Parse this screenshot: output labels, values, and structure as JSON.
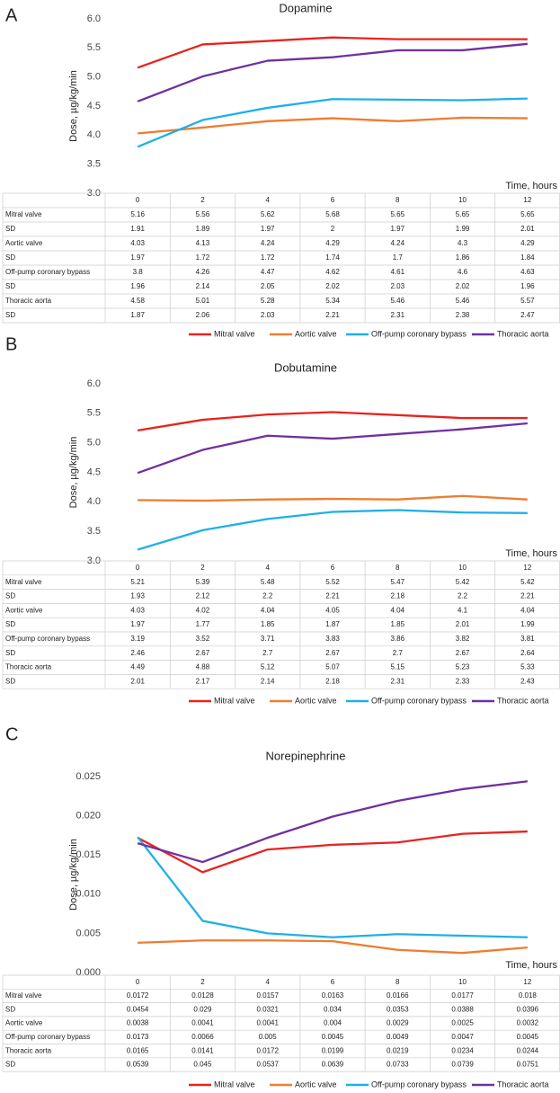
{
  "chart_data": [
    {
      "type": "line",
      "panel_label": "A",
      "title": "Dopamine",
      "y_label": "Dose, µg/kg/min",
      "x_label": "Time, hours",
      "sd_label": "SD",
      "x": [
        0,
        2,
        4,
        6,
        8,
        10,
        12
      ],
      "xlim": [
        -1,
        13
      ],
      "ylim": [
        3,
        6
      ],
      "yticks": [
        {
          "value": 3,
          "label": "3.0"
        },
        3.5,
        {
          "value": 4,
          "label": "4.0"
        },
        4.5,
        {
          "value": 5,
          "label": "5.0"
        },
        5.5,
        {
          "value": 6,
          "label": "6.0"
        }
      ],
      "series": [
        {
          "name": "Mitral valve",
          "color": "#e8231e",
          "values": [
            5.16,
            5.56,
            5.62,
            5.68,
            5.65,
            5.65,
            5.65
          ],
          "sd": [
            1.91,
            1.89,
            1.97,
            2,
            1.97,
            1.99,
            2.01
          ]
        },
        {
          "name": "Aortic valve",
          "color": "#ed7d31",
          "values": [
            4.03,
            4.13,
            4.24,
            4.29,
            4.24,
            4.3,
            4.29
          ],
          "sd": [
            1.97,
            1.72,
            1.72,
            1.74,
            1.7,
            1.86,
            1.84
          ]
        },
        {
          "name": "Off-pump coronary bypass",
          "color": "#1fb0e6",
          "values": [
            3.8,
            4.26,
            4.47,
            4.62,
            4.61,
            4.6,
            4.63
          ],
          "sd": [
            1.96,
            2.14,
            2.05,
            2.02,
            2.03,
            2.02,
            1.96
          ]
        },
        {
          "name": "Thoracic aorta",
          "color": "#7030a0",
          "values": [
            4.58,
            5.01,
            5.28,
            5.34,
            5.46,
            5.46,
            5.57
          ],
          "sd": [
            1.87,
            2.06,
            2.03,
            2.21,
            2.31,
            2.38,
            2.47
          ]
        }
      ]
    },
    {
      "type": "line",
      "panel_label": "B",
      "title": "Dobutamine",
      "y_label": "Dose, µg/kg/min",
      "x_label": "Time, hours",
      "sd_label": "SD",
      "x": [
        0,
        2,
        4,
        6,
        8,
        10,
        12
      ],
      "xlim": [
        -1,
        13
      ],
      "ylim": [
        3,
        6
      ],
      "yticks": [
        {
          "value": 3,
          "label": "3.0"
        },
        3.5,
        {
          "value": 4,
          "label": "4.0"
        },
        4.5,
        {
          "value": 5,
          "label": "5.0"
        },
        5.5,
        {
          "value": 6,
          "label": "6.0"
        }
      ],
      "series": [
        {
          "name": "Mitral valve",
          "color": "#e8231e",
          "values": [
            5.21,
            5.39,
            5.48,
            5.52,
            5.47,
            5.42,
            5.42
          ],
          "sd": [
            1.93,
            2.12,
            2.2,
            2.21,
            2.18,
            2.2,
            2.21
          ]
        },
        {
          "name": "Aortic valve",
          "color": "#ed7d31",
          "values": [
            4.03,
            4.02,
            4.04,
            4.05,
            4.04,
            4.1,
            4.04
          ],
          "sd": [
            1.97,
            1.77,
            1.85,
            1.87,
            1.85,
            2.01,
            1.99
          ]
        },
        {
          "name": "Off-pump coronary bypass",
          "color": "#1fb0e6",
          "values": [
            3.19,
            3.52,
            3.71,
            3.83,
            3.86,
            3.82,
            3.81
          ],
          "sd": [
            2.46,
            2.67,
            2.7,
            2.67,
            2.7,
            2.67,
            2.64
          ]
        },
        {
          "name": "Thoracic aorta",
          "color": "#7030a0",
          "values": [
            4.49,
            4.88,
            5.12,
            5.07,
            5.15,
            5.23,
            5.33
          ],
          "sd": [
            2.01,
            2.17,
            2.14,
            2.18,
            2.31,
            2.33,
            2.43
          ]
        }
      ]
    },
    {
      "type": "line",
      "panel_label": "C",
      "title": "Norepinephrine",
      "y_label": "Dose, µg/kg/min",
      "x_label": "Time, hours",
      "sd_label": "SD",
      "x": [
        0,
        2,
        4,
        6,
        8,
        10,
        12
      ],
      "xlim": [
        -1,
        13
      ],
      "ylim": [
        0,
        0.025
      ],
      "yticks": [
        {
          "value": 0,
          "label": "0.000"
        },
        {
          "value": 0.005,
          "label": "0.005"
        },
        {
          "value": 0.01,
          "label": "0.010"
        },
        {
          "value": 0.015,
          "label": "0.015"
        },
        {
          "value": 0.02,
          "label": "0.020"
        },
        {
          "value": 0.025,
          "label": "0.025"
        }
      ],
      "series": [
        {
          "name": "Mitral valve",
          "color": "#e8231e",
          "values": [
            0.0172,
            0.0128,
            0.0157,
            0.0163,
            0.0166,
            0.0177,
            0.018
          ],
          "sd": [
            0.0454,
            0.029,
            0.0321,
            0.034,
            0.0353,
            0.0388,
            0.0396
          ]
        },
        {
          "name": "Aortic valve",
          "color": "#ed7d31",
          "values": [
            0.0038,
            0.0041,
            0.0041,
            0.004,
            0.0029,
            0.0025,
            0.0032
          ]
        },
        {
          "name": "Off-pump coronary bypass",
          "color": "#1fb0e6",
          "values": [
            0.0173,
            0.0066,
            0.005,
            0.0045,
            0.0049,
            0.0047,
            0.0045
          ]
        },
        {
          "name": "Thoracic aorta",
          "color": "#7030a0",
          "values": [
            0.0165,
            0.0141,
            0.0172,
            0.0199,
            0.0219,
            0.0234,
            0.0244
          ],
          "sd": [
            0.0539,
            0.045,
            0.0537,
            0.0639,
            0.0733,
            0.0739,
            0.0751
          ]
        }
      ]
    }
  ]
}
